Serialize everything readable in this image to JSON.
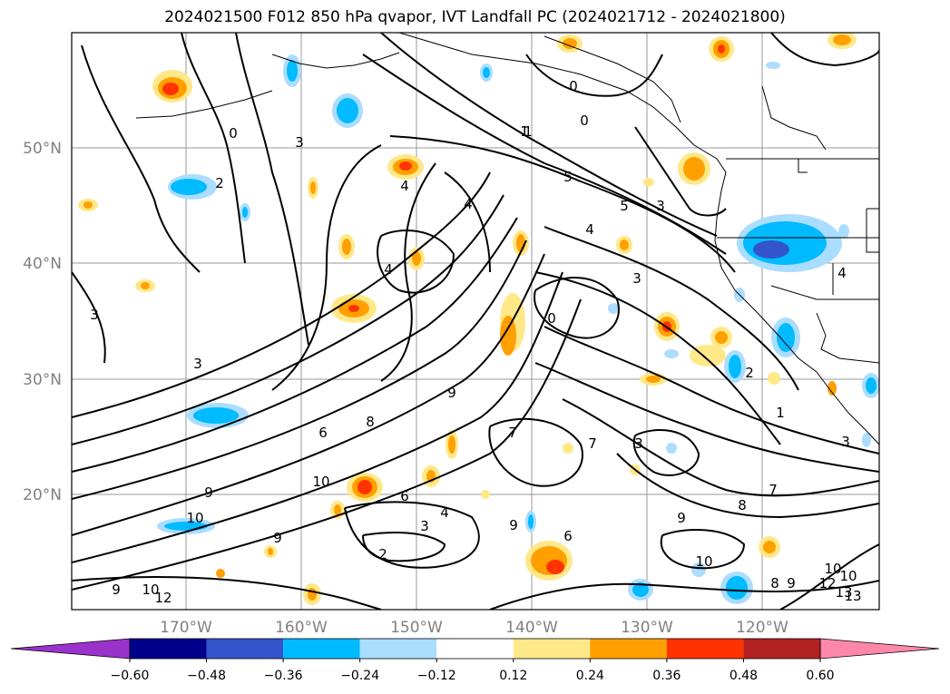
{
  "title": "2024021500 F012 850 hPa qvapor, IVT Landfall PC (2024021712 - 2024021800)",
  "lat_labels": [
    "50°N",
    "40°N",
    "30°N",
    "20°N"
  ],
  "lon_labels": [
    "170°W",
    "160°W",
    "150°W",
    "140°W",
    "130°W",
    "120°W"
  ],
  "colorbar": {
    "tick_labels": [
      "−0.60",
      "−0.48",
      "−0.36",
      "−0.24",
      "−0.12",
      "0.12",
      "0.24",
      "0.36",
      "0.48",
      "0.60"
    ],
    "colors": [
      "#9933cc",
      "#00008b",
      "#3355cc",
      "#00bbff",
      "#aaddff",
      "#ffffff",
      "#ffe888",
      "#ffa000",
      "#ff3300",
      "#b22222",
      "#ff88aa"
    ]
  },
  "contour_labels": [
    "0",
    "2",
    "3",
    "3",
    "4",
    "4",
    "4",
    "5",
    "5",
    "4",
    "3",
    "1",
    "0",
    "0",
    "3",
    "3",
    "9",
    "8",
    "6",
    "7",
    "7",
    "6",
    "9",
    "10",
    "9",
    "10",
    "4",
    "3",
    "2",
    "9",
    "6",
    "10",
    "13",
    "12",
    "10",
    "9",
    "8",
    "9",
    "8",
    "7",
    "3",
    "2",
    "1",
    "3",
    "4",
    "9",
    "12",
    "10",
    "0",
    "1",
    "10",
    "13"
  ]
}
